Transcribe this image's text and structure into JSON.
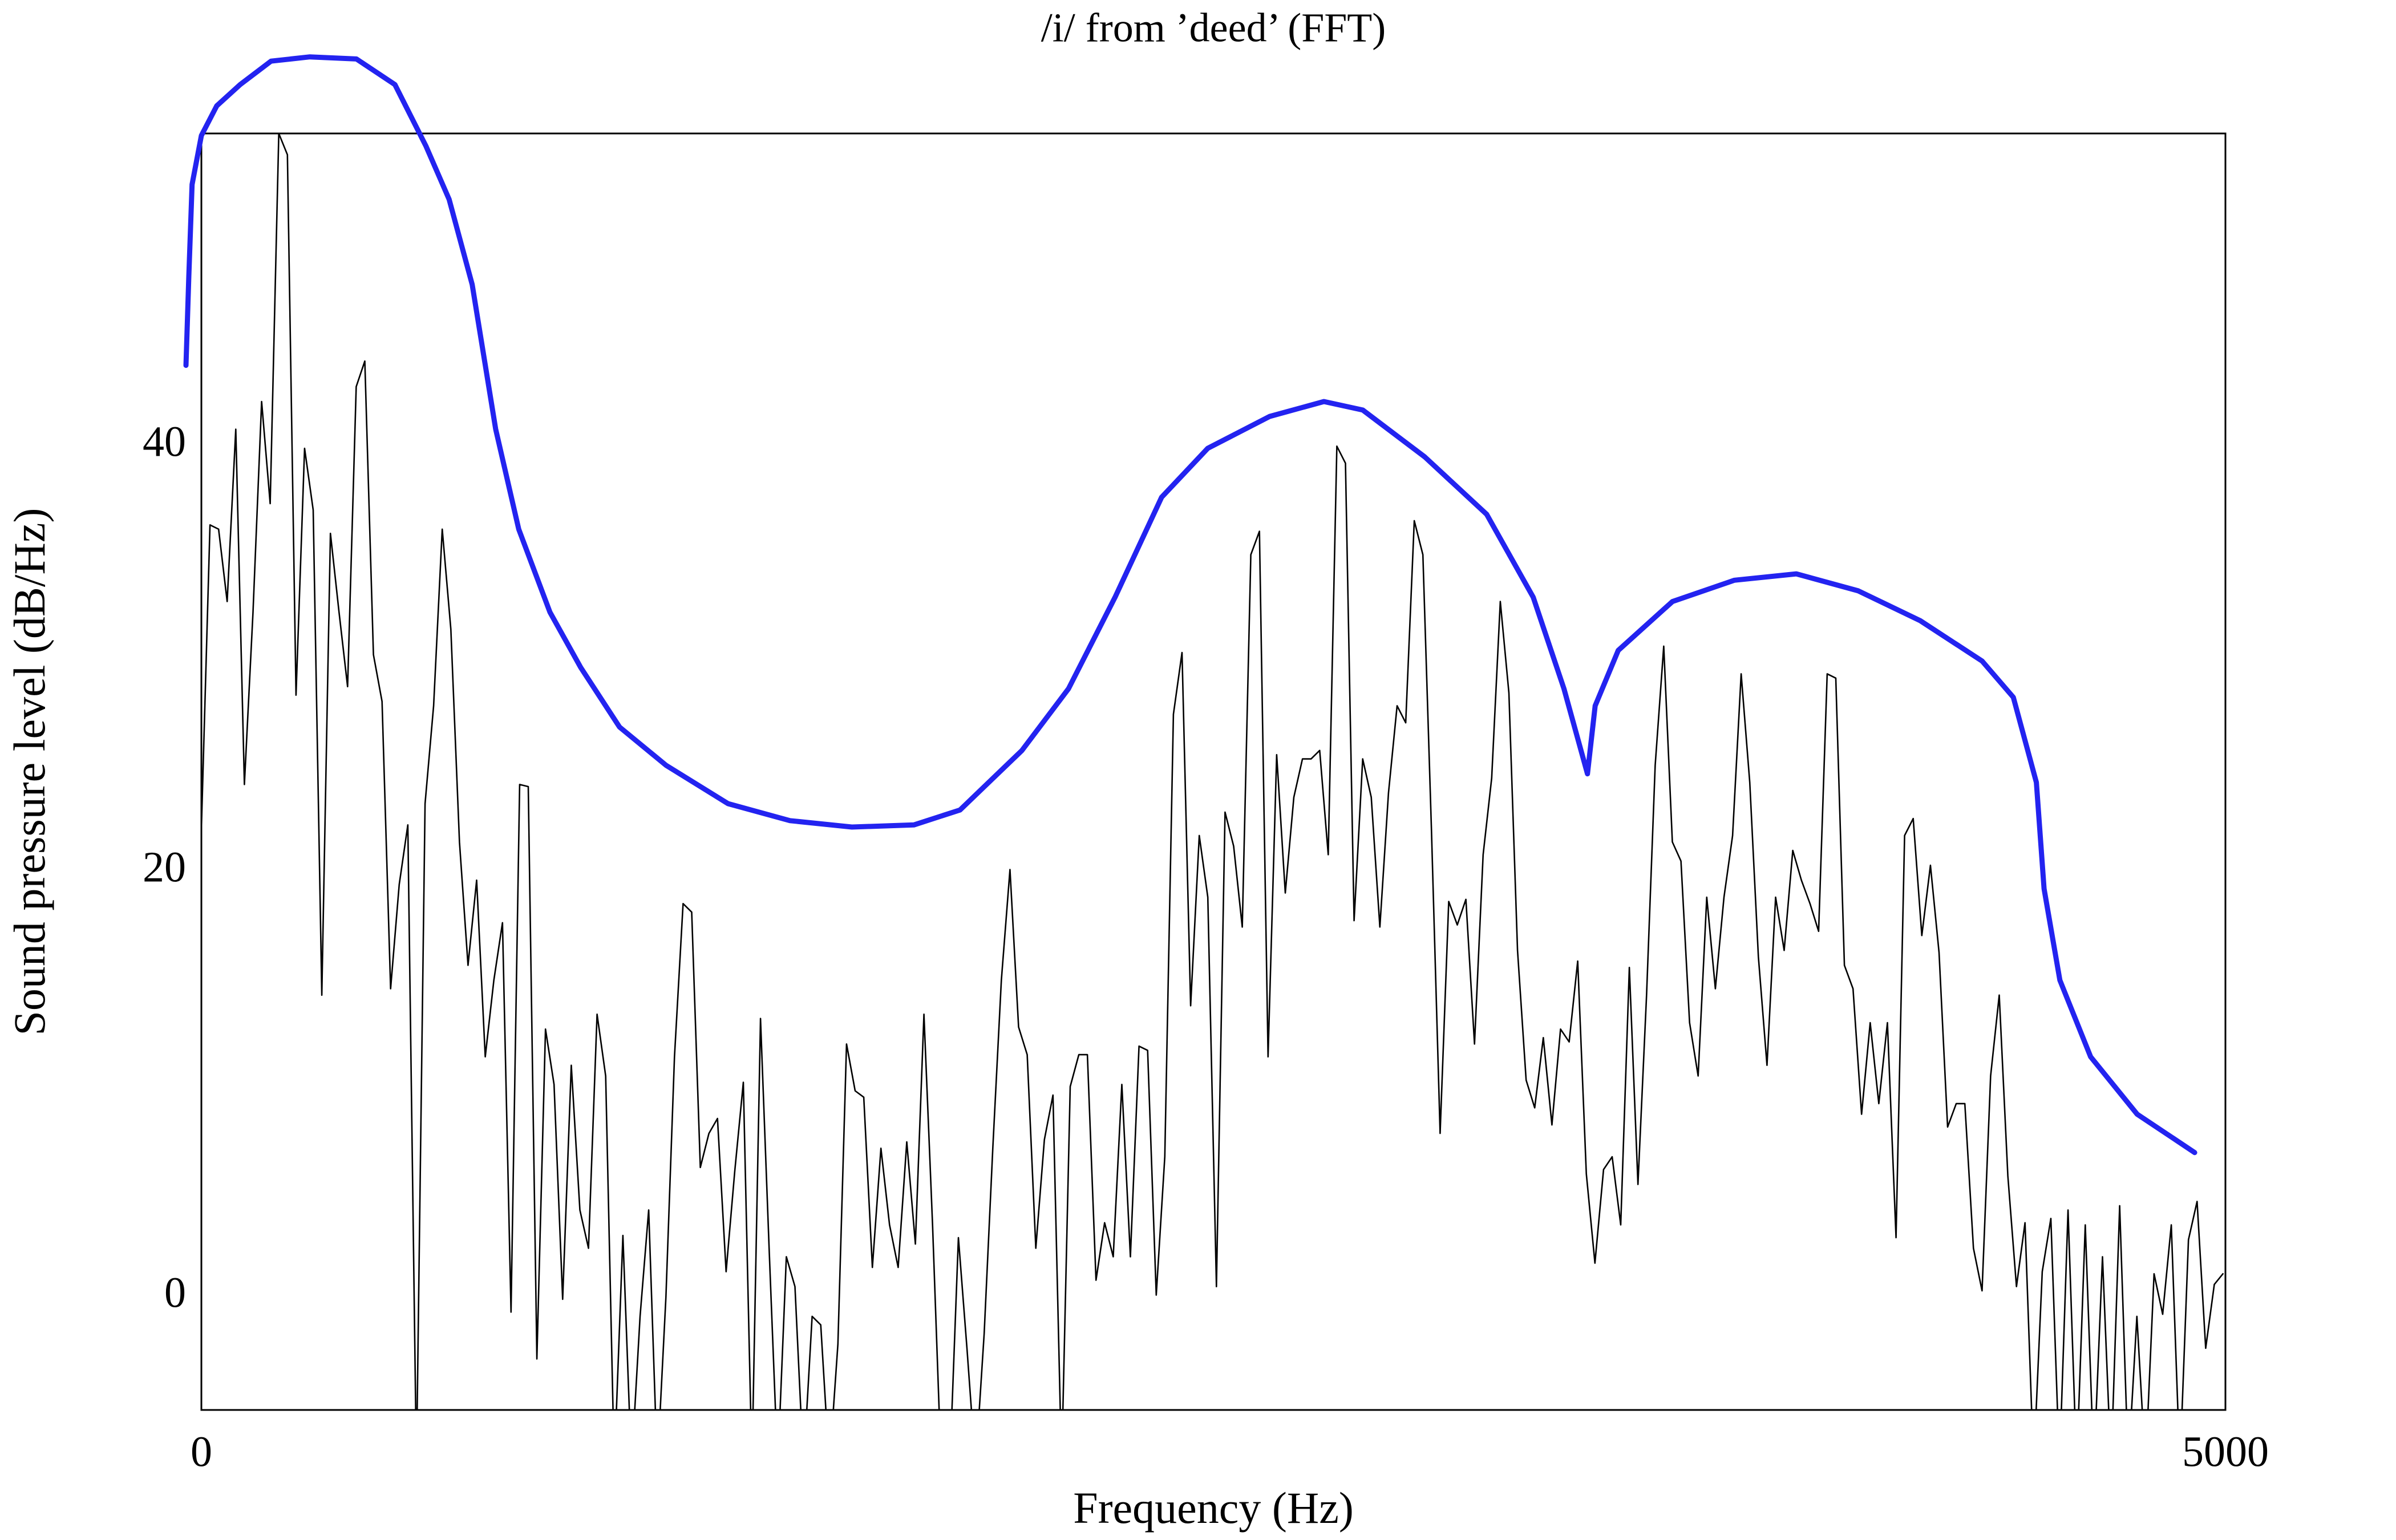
{
  "chart_data": {
    "type": "line",
    "title": "/i/ from ’deed’ (FFT)",
    "xlabel": "Frequency (Hz)",
    "ylabel": "Sound pressure level (dB/Hz)",
    "xlim": [
      0,
      5000
    ],
    "xticks": [
      0,
      5000
    ],
    "ylim": [
      -5.3,
      54.7
    ],
    "yticks": [
      0,
      20,
      40
    ],
    "grid": false,
    "series": [
      {
        "color": "#000000",
        "x": [
          0,
          21.25,
          42.5,
          63.75,
          85,
          106.25,
          127.5,
          148.75,
          170,
          191.25,
          212.5,
          233.75,
          255,
          276.25,
          297.5,
          318.75,
          340,
          361.25,
          382.5,
          403.75,
          425,
          446.25,
          467.5,
          488.75,
          510,
          531.25,
          552.5,
          573.75,
          595,
          616.25,
          637.5,
          658.75,
          680,
          701.25,
          722.5,
          743.75,
          765,
          786.25,
          807.5,
          828.75,
          850,
          871.25,
          892.5,
          913.75,
          935,
          956.25,
          977.5,
          998.75,
          1020,
          1041.25,
          1062.5,
          1083.75,
          1105,
          1126.25,
          1147.5,
          1168.75,
          1190,
          1211.25,
          1232.5,
          1253.75,
          1275,
          1296.25,
          1317.5,
          1338.75,
          1360,
          1381.25,
          1402.5,
          1423.75,
          1445,
          1466.25,
          1487.5,
          1508.75,
          1530,
          1551.25,
          1572.5,
          1593.75,
          1615,
          1636.25,
          1657.5,
          1678.75,
          1700,
          1721.25,
          1742.5,
          1763.75,
          1785,
          1806.25,
          1827.5,
          1848.75,
          1870,
          1891.25,
          1912.5,
          1933.75,
          1955,
          1976.25,
          1997.5,
          2018.75,
          2040,
          2061.25,
          2082.5,
          2103.75,
          2125,
          2146.25,
          2167.5,
          2188.75,
          2210,
          2231.25,
          2252.5,
          2273.75,
          2295,
          2316.25,
          2337.5,
          2358.75,
          2380,
          2401.25,
          2422.5,
          2443.75,
          2465,
          2486.25,
          2507.5,
          2528.75,
          2550,
          2571.25,
          2592.5,
          2613.75,
          2635,
          2656.25,
          2677.5,
          2698.75,
          2720,
          2741.25,
          2762.5,
          2783.75,
          2805,
          2826.25,
          2847.5,
          2868.75,
          2890,
          2911.25,
          2932.5,
          2953.75,
          2975,
          2996.25,
          3017.5,
          3038.75,
          3060,
          3081.25,
          3102.5,
          3123.75,
          3145,
          3166.25,
          3187.5,
          3208.75,
          3230,
          3251.25,
          3272.5,
          3293.75,
          3315,
          3336.25,
          3357.5,
          3378.75,
          3400,
          3421.25,
          3442.5,
          3463.75,
          3485,
          3506.25,
          3527.5,
          3548.75,
          3570,
          3591.25,
          3612.5,
          3633.75,
          3655,
          3676.25,
          3697.5,
          3718.75,
          3740,
          3761.25,
          3782.5,
          3803.75,
          3825,
          3846.25,
          3867.5,
          3888.75,
          3910,
          3931.25,
          3952.5,
          3973.75,
          3995,
          4016.25,
          4037.5,
          4058.75,
          4080,
          4101.25,
          4122.5,
          4143.75,
          4165,
          4186.25,
          4207.5,
          4228.75,
          4250,
          4271.25,
          4292.5,
          4313.75,
          4335,
          4356.25,
          4377.5,
          4398.75,
          4420,
          4441.25,
          4462.5,
          4483.75,
          4505,
          4526.25,
          4547.5,
          4568.75,
          4590,
          4611.25,
          4632.5,
          4653.75,
          4675,
          4696.25,
          4717.5,
          4738.75,
          4760,
          4781.25,
          4802.5,
          4823.75,
          4845,
          4866.25,
          4887.5,
          4908.75,
          4930,
          4951.25,
          4972.5,
          4993.75
        ],
        "values": [
          22,
          36.3,
          36.1,
          32.7,
          40.8,
          24.1,
          32.2,
          42.1,
          37.3,
          54.7,
          53.7,
          28.3,
          39.9,
          37,
          14.2,
          35.9,
          32.2,
          28.7,
          42.8,
          44,
          30.2,
          28,
          14.5,
          19.4,
          22.2,
          -8,
          23.2,
          27.8,
          36.1,
          31.4,
          21.4,
          15.6,
          19.6,
          11.3,
          14.9,
          17.6,
          -0.7,
          24.1,
          24,
          -2.9,
          12.6,
          10,
          -0.1,
          10.9,
          4.1,
          2.3,
          13.3,
          10.4,
          -8,
          2.9,
          -8,
          -0.9,
          4.1,
          -8,
          0,
          11.3,
          18.5,
          18.1,
          6.1,
          7.7,
          8.4,
          1.2,
          5.9,
          10.1,
          -8,
          13.1,
          2.3,
          -8,
          1.9,
          0.5,
          -8,
          -0.9,
          -1.3,
          -8,
          -2.2,
          11.9,
          9.7,
          9.4,
          1.4,
          7,
          3.4,
          1.4,
          7.3,
          2.5,
          13.3,
          3.4,
          -8,
          -8,
          2.8,
          -2.4,
          -8,
          -1.7,
          7,
          14.9,
          20.1,
          12.7,
          11.4,
          2.3,
          7.4,
          9.5,
          -8,
          9.9,
          11.4,
          11.4,
          0.8,
          3.5,
          1.9,
          10,
          1.9,
          11.8,
          11.6,
          0.1,
          6.6,
          27.4,
          30.3,
          13.7,
          21.7,
          18.8,
          0.5,
          22.8,
          21.2,
          17.4,
          34.9,
          36,
          11.3,
          25.5,
          19,
          23.5,
          25.3,
          25.3,
          25.7,
          20.8,
          40,
          39.2,
          17.7,
          25.3,
          23.5,
          17.4,
          23.7,
          27.8,
          27,
          36.5,
          34.9,
          21.9,
          7.7,
          18.6,
          17.5,
          18.7,
          11.9,
          20.8,
          24.4,
          32.7,
          28.4,
          16.3,
          10.2,
          8.9,
          12.2,
          8.1,
          12.6,
          12,
          15.8,
          5.8,
          1.6,
          6,
          6.6,
          3.4,
          15.5,
          5.3,
          14.2,
          25,
          30.6,
          21.4,
          20.5,
          12.9,
          10.4,
          18.8,
          14.5,
          18.8,
          21.7,
          29.3,
          24.2,
          16,
          10.9,
          18.8,
          16.3,
          21,
          19.6,
          18.5,
          17.2,
          29.3,
          29.1,
          15.6,
          14.5,
          8.6,
          12.9,
          9.1,
          12.9,
          2.8,
          21.7,
          22.5,
          17,
          20.3,
          16.2,
          8,
          9.1,
          9.1,
          2.3,
          0.3,
          10.4,
          14.2,
          5.7,
          0.5,
          3.5,
          -8,
          1.2,
          3.7,
          -8,
          4.1,
          -8,
          3.4,
          -8,
          1.9,
          -8,
          4.3,
          -8,
          -0.9,
          -8,
          1.1,
          -0.8,
          3.4,
          -8,
          2.7,
          4.5,
          -2.4,
          0.6,
          1.1
        ]
      },
      {
        "color": "#2323f0",
        "x": [
          -38,
          -31,
          -23,
          0,
          38,
          96,
          172,
          268,
          383,
          478,
          555,
          612,
          669,
          727,
          784,
          861,
          937,
          1033,
          1148,
          1301,
          1454,
          1607,
          1760,
          1874,
          2027,
          2142,
          2257,
          2372,
          2486,
          2639,
          2773,
          2869,
          3022,
          3175,
          3290,
          3366,
          3424,
          3443,
          3500,
          3634,
          3787,
          3940,
          4093,
          4246,
          4399,
          4476,
          4533,
          4552,
          4591,
          4667,
          4782,
          4924
        ],
        "values": [
          43.8,
          48,
          52.3,
          54.6,
          56,
          57,
          58.1,
          58.3,
          58.2,
          57,
          54.1,
          51.6,
          47.6,
          40.8,
          36.1,
          32.2,
          29.6,
          26.8,
          25,
          23.2,
          22.4,
          22.1,
          22.2,
          22.9,
          25.7,
          28.6,
          32.9,
          37.6,
          39.9,
          41.4,
          42.1,
          41.7,
          39.5,
          36.8,
          32.9,
          28.6,
          24.6,
          27.8,
          30.4,
          32.7,
          33.7,
          34,
          33.2,
          31.8,
          29.9,
          28.2,
          24.2,
          19.2,
          14.9,
          11.3,
          8.6,
          6.8
        ]
      }
    ]
  }
}
